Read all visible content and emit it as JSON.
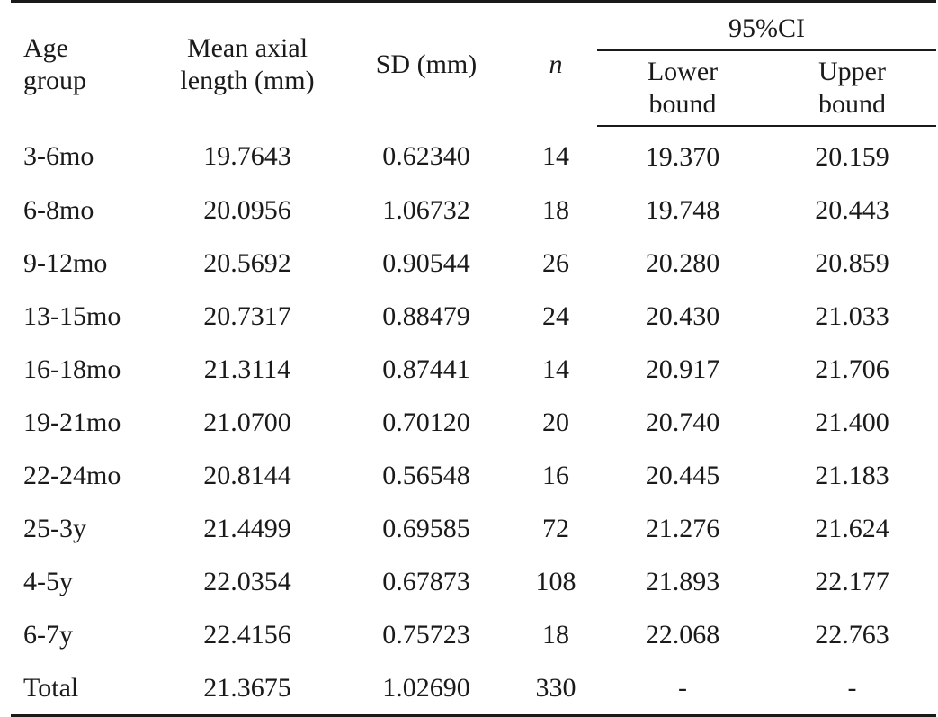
{
  "table": {
    "headers": {
      "age_group_l1": "Age",
      "age_group_l2": "group",
      "mean_l1": "Mean axial",
      "mean_l2": "length (mm)",
      "sd": "SD (mm)",
      "n": "n",
      "ci": "95%CI",
      "lower_l1": "Lower",
      "lower_l2": "bound",
      "upper_l1": "Upper",
      "upper_l2": "bound"
    },
    "rows": [
      {
        "age": "3-6mo",
        "mean": "19.7643",
        "sd": "0.62340",
        "n": "14",
        "lower": "19.370",
        "upper": "20.159"
      },
      {
        "age": "6-8mo",
        "mean": "20.0956",
        "sd": "1.06732",
        "n": "18",
        "lower": "19.748",
        "upper": "20.443"
      },
      {
        "age": "9-12mo",
        "mean": "20.5692",
        "sd": "0.90544",
        "n": "26",
        "lower": "20.280",
        "upper": "20.859"
      },
      {
        "age": "13-15mo",
        "mean": "20.7317",
        "sd": "0.88479",
        "n": "24",
        "lower": "20.430",
        "upper": "21.033"
      },
      {
        "age": "16-18mo",
        "mean": "21.3114",
        "sd": "0.87441",
        "n": "14",
        "lower": "20.917",
        "upper": "21.706"
      },
      {
        "age": "19-21mo",
        "mean": "21.0700",
        "sd": "0.70120",
        "n": "20",
        "lower": "20.740",
        "upper": "21.400"
      },
      {
        "age": "22-24mo",
        "mean": "20.8144",
        "sd": "0.56548",
        "n": "16",
        "lower": "20.445",
        "upper": "21.183"
      },
      {
        "age": "25-3y",
        "mean": "21.4499",
        "sd": "0.69585",
        "n": "72",
        "lower": "21.276",
        "upper": "21.624"
      },
      {
        "age": "4-5y",
        "mean": "22.0354",
        "sd": "0.67873",
        "n": "108",
        "lower": "21.893",
        "upper": "22.177"
      },
      {
        "age": "6-7y",
        "mean": "22.4156",
        "sd": "0.75723",
        "n": "18",
        "lower": "22.068",
        "upper": "22.763"
      },
      {
        "age": "Total",
        "mean": "21.3675",
        "sd": "1.02690",
        "n": "330",
        "lower": "-",
        "upper": "-"
      }
    ]
  }
}
